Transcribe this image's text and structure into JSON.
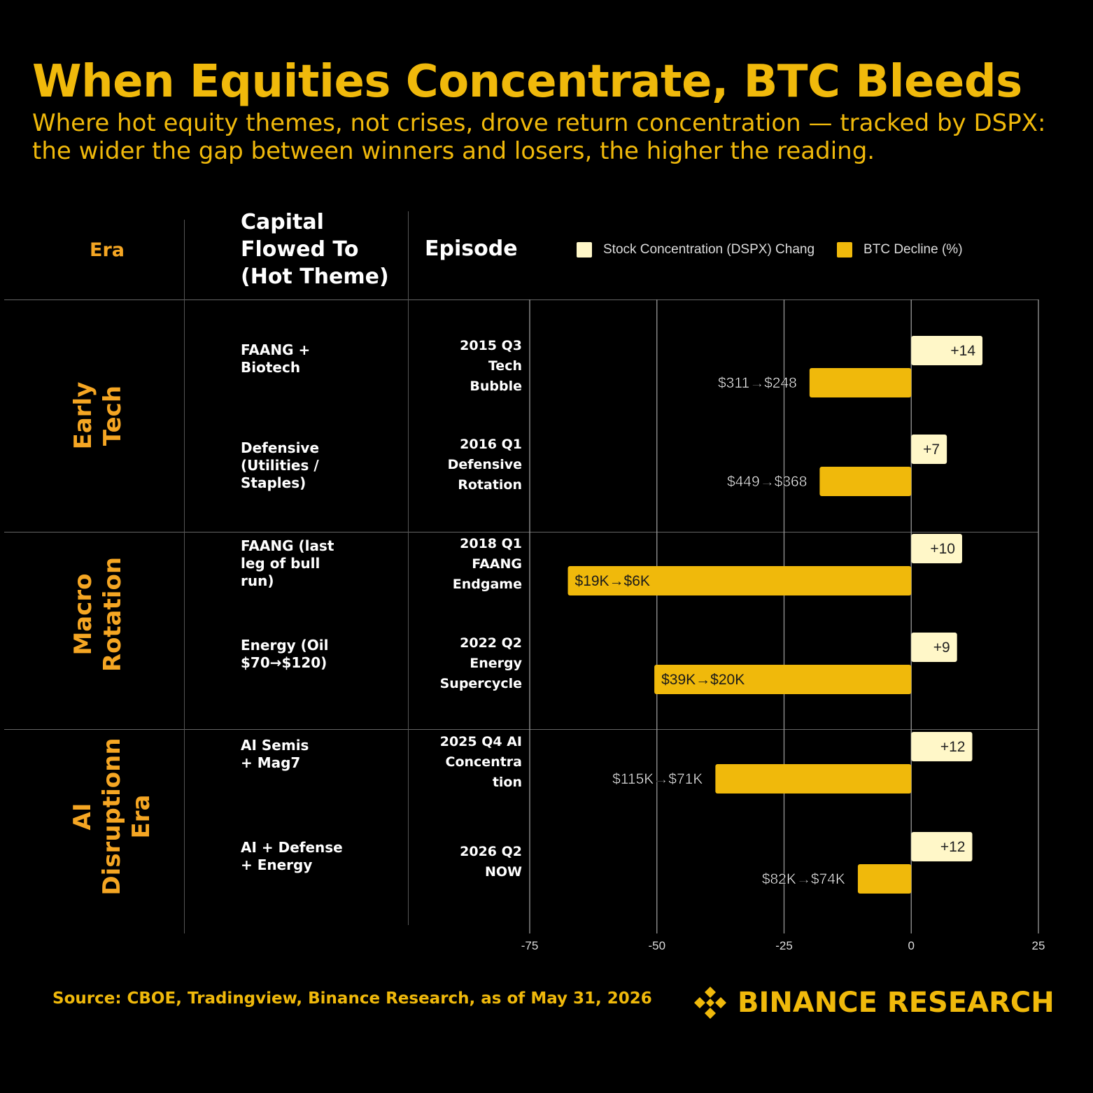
{
  "title": "When Equities Concentrate, BTC Bleeds",
  "subtitle": "Where hot equity themes, not crises, drove return concentration — tracked by DSPX: the wider the gap between winners and losers, the higher the reading.",
  "headers": {
    "era": "Era",
    "theme": "Capital Flowed To (Hot Theme)",
    "episode": "Episode"
  },
  "legend": [
    {
      "name": "Stock Concentration (DSPX) Chang",
      "color": "#FFF7C8"
    },
    {
      "name": "BTC Decline (%)",
      "color": "#F0B90B"
    }
  ],
  "eras": [
    {
      "label_1": "Early",
      "label_2": "Tech"
    },
    {
      "label_1": "Macro",
      "label_2": "Rotation"
    },
    {
      "label_1": "AI",
      "label_2": "Disruptionn",
      "label_3": "Era"
    }
  ],
  "themes": [
    "FAANG + Biotech",
    "Defensive (Utilities / Staples)",
    "FAANG (last leg of bull run)",
    "Energy (Oil $70→$120)",
    "AI Semis + Mag7",
    "AI + Defense + Energy"
  ],
  "episodes": [
    "2015 Q3 Tech Bubble",
    "2016 Q1 Defensive Rotation",
    "2018 Q1 FAANG Endgame",
    "2022 Q2 Energy Supercycle",
    "2025 Q4 AI Concentra tion",
    "2026 Q2 NOW"
  ],
  "chart_data": {
    "type": "bar",
    "orientation": "horizontal",
    "categories": [
      "2015 Q3 Tech Bubble",
      "2016 Q1 Defensive Rotation",
      "2018 Q1 FAANG Endgame",
      "2022 Q2 Energy Supercycle",
      "2025 Q4 AI Concentra tion",
      "2026 Q2 NOW"
    ],
    "series": [
      {
        "name": "Stock Concentration (DSPX) Chang",
        "color": "#FFF7C8",
        "values": [
          14,
          7,
          10,
          9,
          12,
          12
        ],
        "labels": [
          "+14",
          "+7",
          "+10",
          "+9",
          "+12",
          "+12"
        ]
      },
      {
        "name": "BTC Decline (%)",
        "color": "#F0B90B",
        "values": [
          -20,
          -18,
          -67.5,
          -50.5,
          -38.5,
          -10.5
        ],
        "labels": [
          "$311→$248",
          "$449→$368",
          "$19K→$6K",
          "$39K→$20K",
          "$115K→$71K",
          "$82K→$74K"
        ]
      }
    ],
    "xlim": [
      -75,
      25
    ],
    "xticks": [
      -75,
      -50,
      -25,
      0,
      25
    ],
    "grid": true,
    "legend_position": "top"
  },
  "footer": {
    "source": "Source: CBOE, Tradingview, Binance Research, as of May 31, 2026",
    "brand": "BINANCE RESEARCH",
    "brand_color": "#F0B90B"
  }
}
